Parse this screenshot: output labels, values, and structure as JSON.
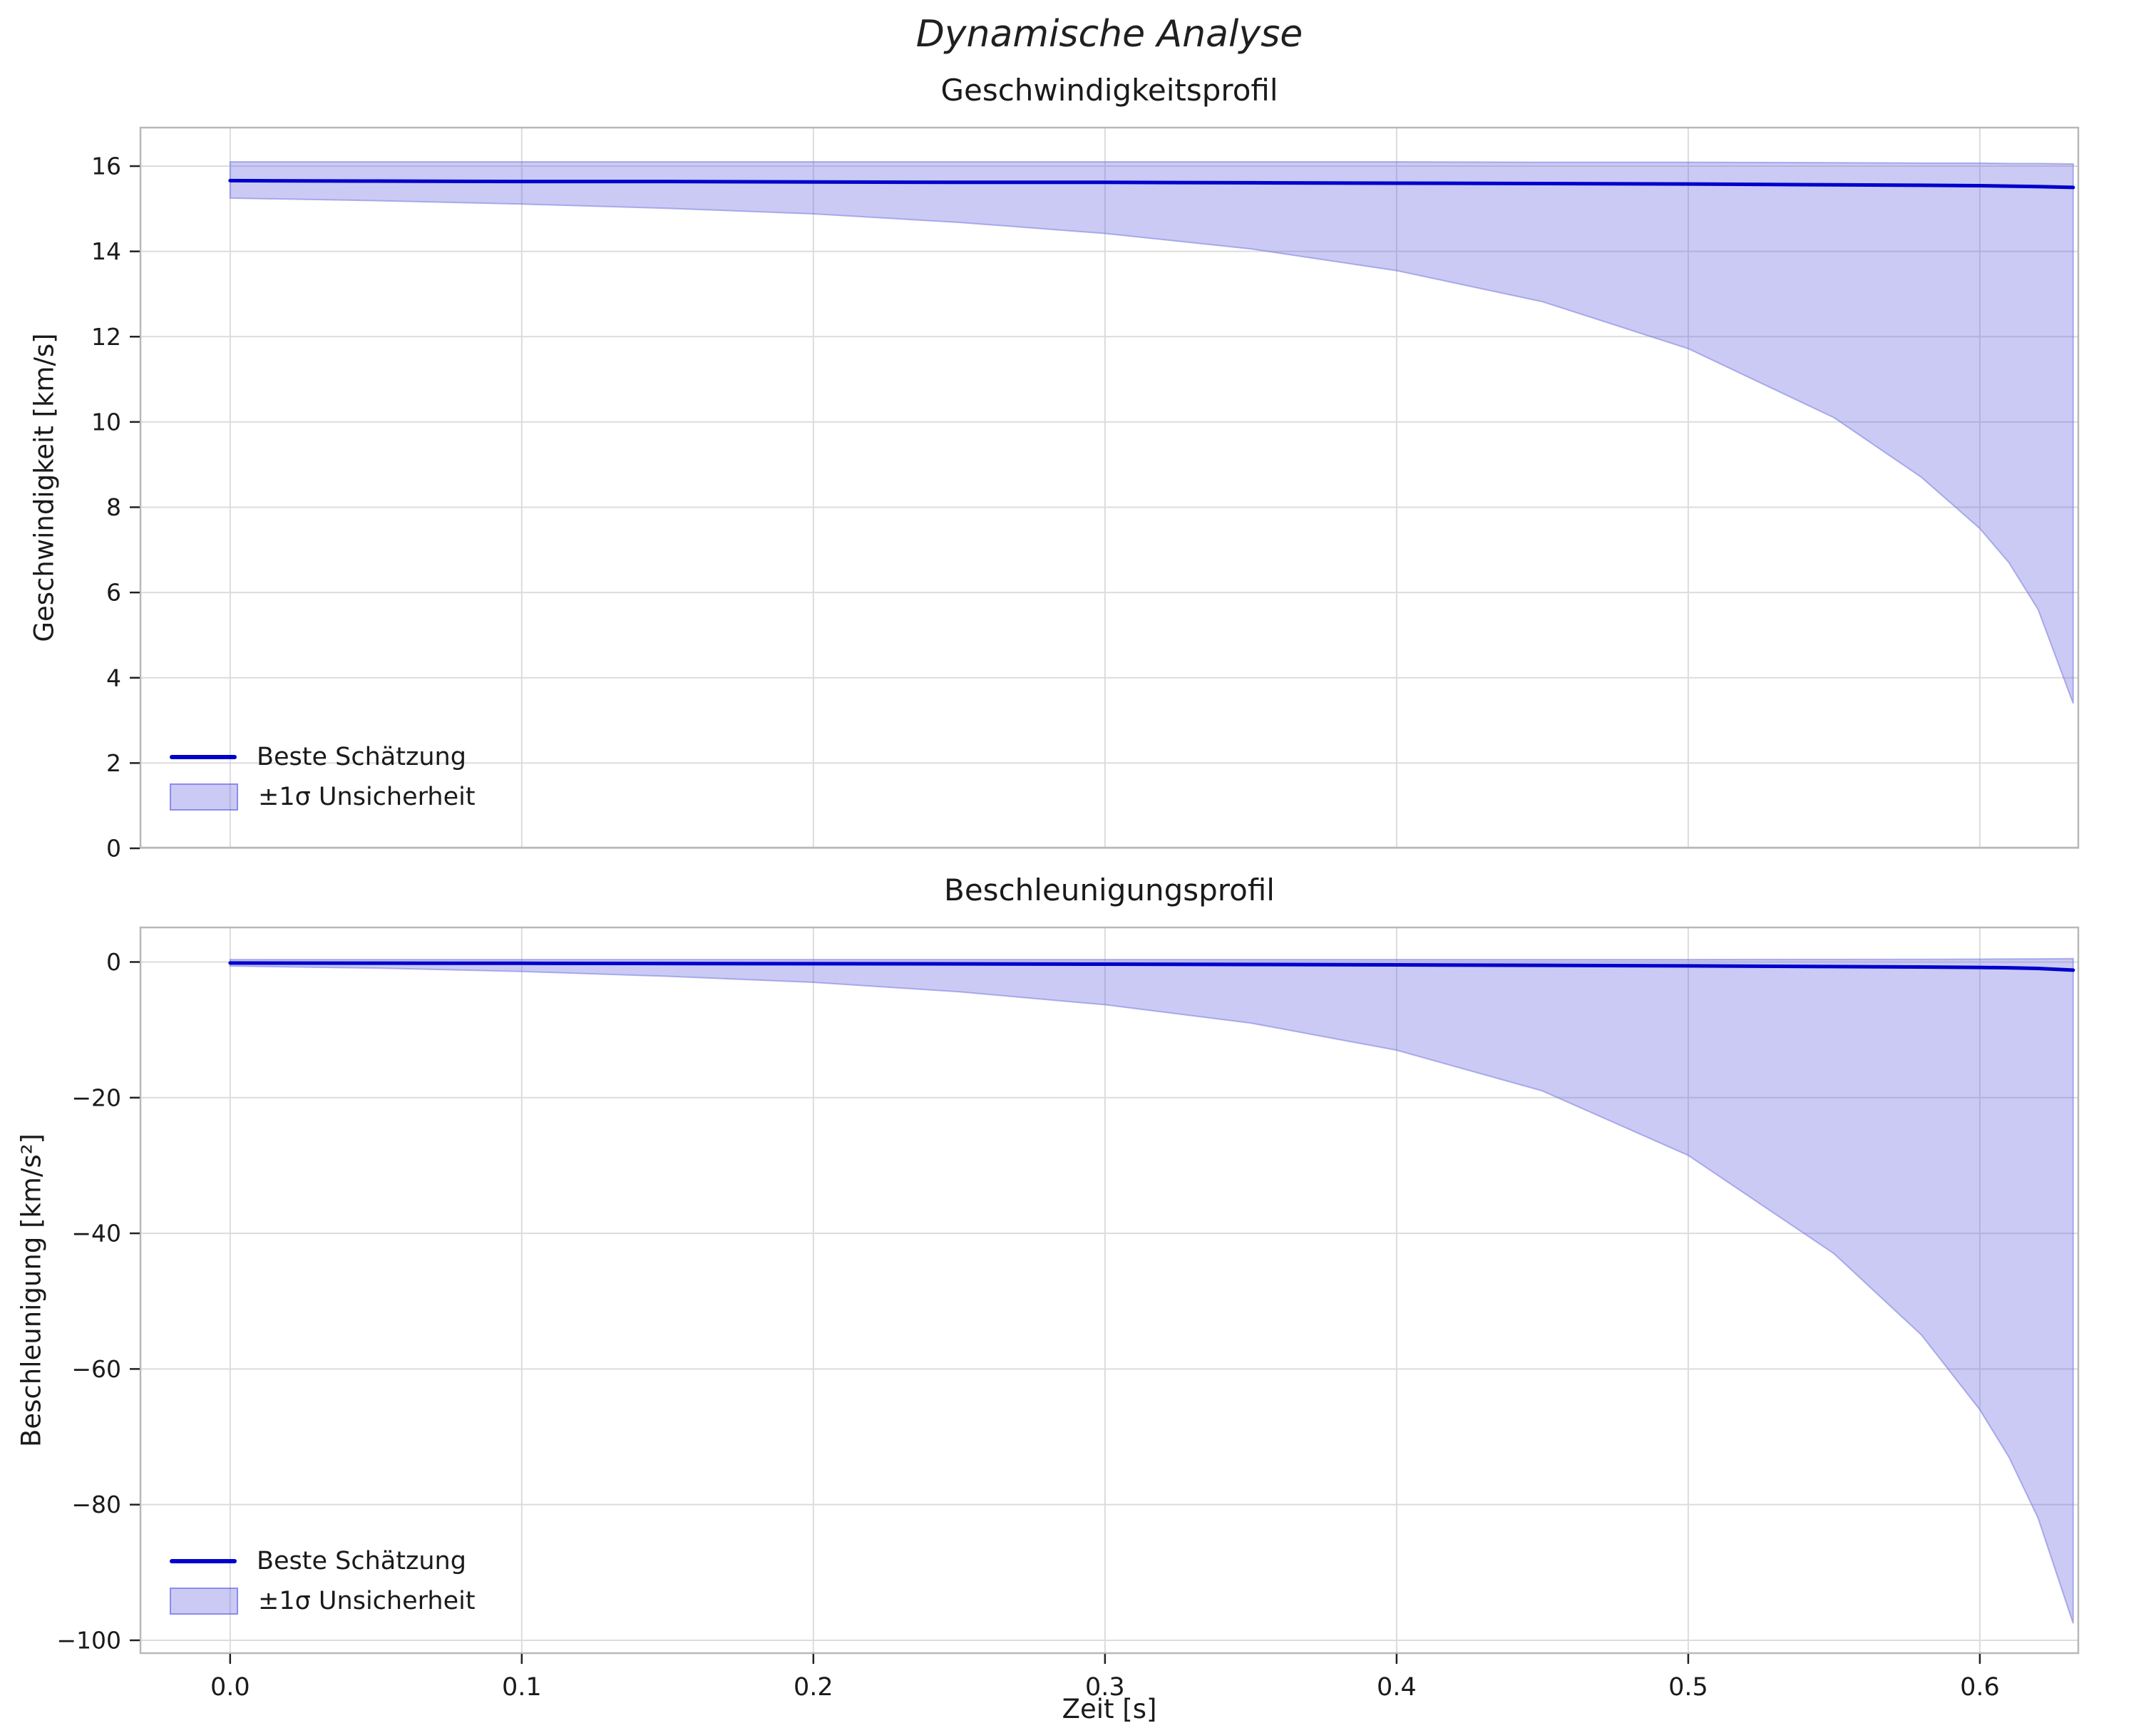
{
  "figure": {
    "title": "Dynamische Analyse"
  },
  "colors": {
    "line": "#0000cc",
    "band_fill": "#5a5ae0",
    "band_fill_opacity": 0.32,
    "band_edge": "#7a7adf",
    "grid": "#dcdcdc",
    "spine": "#b8b8b8",
    "tick": "#222222",
    "text": "#1a1a1a"
  },
  "legend": {
    "best_label": "Beste Schätzung",
    "band_label": "±1σ Unsicherheit"
  },
  "xaxis": {
    "label": "Zeit [s]",
    "tick_values": [
      0.0,
      0.1,
      0.2,
      0.3,
      0.4,
      0.5,
      0.6
    ],
    "tick_labels": [
      "0.0",
      "0.1",
      "0.2",
      "0.3",
      "0.4",
      "0.5",
      "0.6"
    ],
    "lim": [
      -0.031,
      0.634
    ]
  },
  "chart_data": [
    {
      "type": "line",
      "title": "Geschwindigkeitsprofil",
      "ylabel": "Geschwindigkeit [km/s]",
      "xlabel": "Zeit [s]",
      "ylim": [
        0,
        16.92
      ],
      "ytick_values": [
        0,
        2,
        4,
        6,
        8,
        10,
        12,
        14,
        16
      ],
      "ytick_labels": [
        "0",
        "2",
        "4",
        "6",
        "8",
        "10",
        "12",
        "14",
        "16"
      ],
      "grid": true,
      "legend_position": "lower-left",
      "x": [
        0.0,
        0.05,
        0.1,
        0.15,
        0.2,
        0.25,
        0.3,
        0.35,
        0.4,
        0.45,
        0.5,
        0.55,
        0.58,
        0.6,
        0.61,
        0.62,
        0.632
      ],
      "series": [
        {
          "name": "Beste Schätzung",
          "values": [
            15.66,
            15.65,
            15.64,
            15.64,
            15.63,
            15.62,
            15.62,
            15.61,
            15.6,
            15.59,
            15.58,
            15.56,
            15.55,
            15.54,
            15.53,
            15.52,
            15.5
          ]
        },
        {
          "name": "+1σ obere Grenze",
          "values": [
            16.1,
            16.1,
            16.1,
            16.1,
            16.1,
            16.1,
            16.1,
            16.1,
            16.1,
            16.09,
            16.09,
            16.08,
            16.07,
            16.07,
            16.06,
            16.06,
            16.05
          ]
        },
        {
          "name": "−1σ untere Grenze",
          "values": [
            15.25,
            15.19,
            15.11,
            15.01,
            14.88,
            14.68,
            14.42,
            14.06,
            13.55,
            12.82,
            11.72,
            10.1,
            8.7,
            7.5,
            6.7,
            5.6,
            3.4
          ]
        }
      ]
    },
    {
      "type": "line",
      "title": "Beschleunigungsprofil",
      "ylabel": "Beschleunigung [km/s²]",
      "xlabel": "Zeit [s]",
      "ylim": [
        -102,
        5.2
      ],
      "ytick_values": [
        0,
        -20,
        -40,
        -60,
        -80,
        -100
      ],
      "ytick_labels": [
        "0",
        "−20",
        "−40",
        "−60",
        "−80",
        "−100"
      ],
      "grid": true,
      "legend_position": "lower-left",
      "x": [
        0.0,
        0.05,
        0.1,
        0.15,
        0.2,
        0.25,
        0.3,
        0.35,
        0.4,
        0.45,
        0.5,
        0.55,
        0.58,
        0.6,
        0.61,
        0.62,
        0.632
      ],
      "series": [
        {
          "name": "Beste Schätzung",
          "values": [
            -0.15,
            -0.17,
            -0.19,
            -0.22,
            -0.25,
            -0.28,
            -0.32,
            -0.37,
            -0.42,
            -0.49,
            -0.57,
            -0.67,
            -0.74,
            -0.8,
            -0.85,
            -0.95,
            -1.2
          ]
        },
        {
          "name": "+1σ obere Grenze",
          "values": [
            0.35,
            0.35,
            0.35,
            0.35,
            0.35,
            0.35,
            0.35,
            0.35,
            0.35,
            0.35,
            0.36,
            0.38,
            0.4,
            0.42,
            0.44,
            0.46,
            0.5
          ]
        },
        {
          "name": "−1σ untere Grenze",
          "values": [
            -0.6,
            -0.9,
            -1.4,
            -2.1,
            -3.0,
            -4.4,
            -6.3,
            -9.0,
            -13.0,
            -19.0,
            -28.5,
            -43.0,
            -55.0,
            -66.0,
            -73.0,
            -82.0,
            -97.5
          ]
        }
      ]
    }
  ]
}
